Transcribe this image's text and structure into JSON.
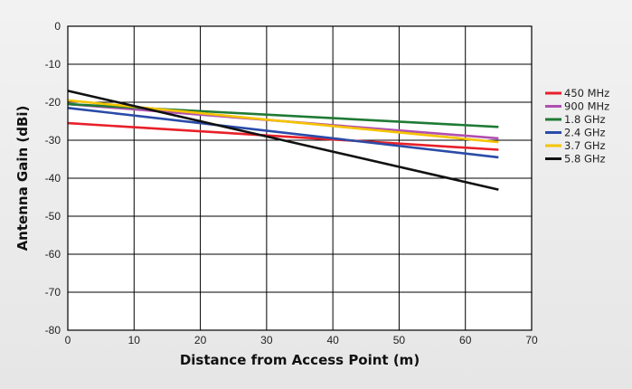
{
  "chart_data": {
    "type": "line",
    "title": "",
    "xlabel": "Distance from Access Point (m)",
    "ylabel": "Antenna Gain (dBi)",
    "xlim": [
      0,
      70
    ],
    "ylim": [
      -80,
      0
    ],
    "xticks": [
      "0",
      "10",
      "20",
      "30",
      "40",
      "50",
      "60",
      "70"
    ],
    "yticks": [
      "0",
      "-10",
      "-20",
      "-30",
      "-40",
      "-50",
      "-60",
      "-70",
      "-80"
    ],
    "grid": true,
    "legend_position": "right",
    "series": [
      {
        "name": "450 MHz",
        "color": "#e8202a",
        "x": [
          0,
          65
        ],
        "y": [
          -25.5,
          -32.5
        ]
      },
      {
        "name": "900 MHz",
        "color": "#b04fb0",
        "x": [
          0,
          65
        ],
        "y": [
          -20.5,
          -29.5
        ]
      },
      {
        "name": "1.8 GHz",
        "color": "#1f7a35",
        "x": [
          0,
          65
        ],
        "y": [
          -20.5,
          -26.5
        ]
      },
      {
        "name": "2.4 GHz",
        "color": "#2a4ba8",
        "x": [
          0,
          65
        ],
        "y": [
          -21.5,
          -34.5
        ]
      },
      {
        "name": "3.7 GHz",
        "color": "#f5c400",
        "x": [
          0,
          65
        ],
        "y": [
          -19.5,
          -30.5
        ]
      },
      {
        "name": "5.8 GHz",
        "color": "#111111",
        "x": [
          0,
          65
        ],
        "y": [
          -17.0,
          -43.0
        ]
      }
    ]
  }
}
